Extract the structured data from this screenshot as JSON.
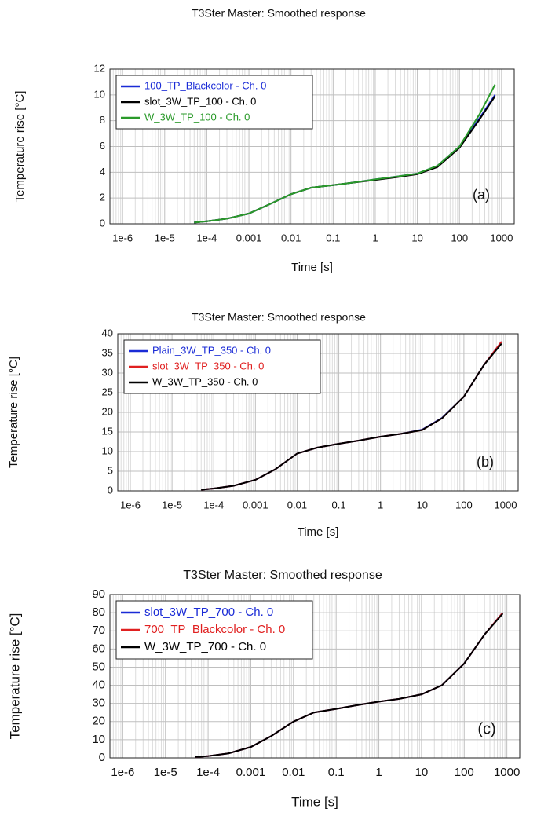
{
  "chart_data": [
    {
      "type": "line",
      "title": "T3Ster Master: Smoothed response",
      "xlabel": "Time [s]",
      "ylabel": "Temperature rise [°C]",
      "annotation": "(a)",
      "xscale": "log",
      "grid": true,
      "legend": "upper left",
      "xlim": [
        5e-07,
        2000
      ],
      "ylim": [
        0,
        12
      ],
      "xticks": [
        {
          "value": 1e-06,
          "label": "1e-6"
        },
        {
          "value": 1e-05,
          "label": "1e-5"
        },
        {
          "value": 0.0001,
          "label": "1e-4"
        },
        0.001,
        0.01,
        0.1,
        1,
        10,
        100,
        1000
      ],
      "yticks": [
        0,
        2,
        4,
        6,
        8,
        10,
        12
      ],
      "x": [
        5e-05,
        0.0001,
        0.0003,
        0.001,
        0.003,
        0.01,
        0.03,
        0.1,
        0.3,
        1,
        3,
        10,
        30,
        100,
        300,
        700
      ],
      "series": [
        {
          "name": "100_TP_Blackcolor - Ch. 0",
          "color": "#1a2bd6",
          "values": [
            0.1,
            0.2,
            0.4,
            0.8,
            1.5,
            2.3,
            2.8,
            3.0,
            3.2,
            3.45,
            3.65,
            3.9,
            4.5,
            6.0,
            8.2,
            10.0
          ]
        },
        {
          "name": "slot_3W_TP_100 - Ch. 0",
          "color": "#000000",
          "values": [
            0.1,
            0.2,
            0.4,
            0.8,
            1.5,
            2.3,
            2.8,
            3.0,
            3.2,
            3.4,
            3.6,
            3.85,
            4.4,
            5.9,
            8.1,
            9.9
          ]
        },
        {
          "name": "W_3W_TP_100 - Ch. 0",
          "color": "#2a9a2a",
          "values": [
            0.1,
            0.2,
            0.4,
            0.8,
            1.5,
            2.3,
            2.8,
            3.0,
            3.2,
            3.45,
            3.65,
            3.9,
            4.5,
            6.0,
            8.5,
            10.8
          ]
        }
      ]
    },
    {
      "type": "line",
      "title": "T3Ster Master: Smoothed response",
      "xlabel": "Time [s]",
      "ylabel": "Temperature rise [°C]",
      "annotation": "(b)",
      "xscale": "log",
      "grid": true,
      "legend": "upper left",
      "xlim": [
        5e-07,
        2000
      ],
      "ylim": [
        0,
        40
      ],
      "xticks": [
        {
          "value": 1e-06,
          "label": "1e-6"
        },
        {
          "value": 1e-05,
          "label": "1e-5"
        },
        {
          "value": 0.0001,
          "label": "1e-4"
        },
        0.001,
        0.01,
        0.1,
        1,
        10,
        100,
        1000
      ],
      "yticks": [
        0,
        5,
        10,
        15,
        20,
        25,
        30,
        35,
        40
      ],
      "x": [
        5e-05,
        0.0001,
        0.0003,
        0.001,
        0.003,
        0.01,
        0.03,
        0.1,
        0.3,
        1,
        3,
        10,
        30,
        100,
        300,
        800
      ],
      "series": [
        {
          "name": "Plain_3W_TP_350 - Ch. 0",
          "color": "#1a2bd6",
          "values": [
            0.3,
            0.6,
            1.3,
            2.8,
            5.5,
            9.5,
            11,
            12,
            12.8,
            13.8,
            14.5,
            15.6,
            18.6,
            24,
            32,
            38
          ]
        },
        {
          "name": "slot_3W_TP_350 - Ch. 0",
          "color": "#e02020",
          "values": [
            0.3,
            0.6,
            1.3,
            2.8,
            5.5,
            9.5,
            11,
            12,
            12.8,
            13.8,
            14.5,
            15.5,
            18.5,
            24,
            32,
            38
          ]
        },
        {
          "name": "W_3W_TP_350 - Ch. 0",
          "color": "#000000",
          "values": [
            0.3,
            0.6,
            1.3,
            2.8,
            5.5,
            9.5,
            11,
            12,
            12.8,
            13.8,
            14.5,
            15.5,
            18.5,
            24,
            32,
            37.5
          ]
        }
      ]
    },
    {
      "type": "line",
      "title": "T3Ster Master: Smoothed response",
      "xlabel": "Time [s]",
      "ylabel": "Temperature rise [°C]",
      "annotation": "(c)",
      "xscale": "log",
      "grid": true,
      "legend": "upper left",
      "xlim": [
        5e-07,
        2000
      ],
      "ylim": [
        0,
        90
      ],
      "xticks": [
        {
          "value": 1e-06,
          "label": "1e-6"
        },
        {
          "value": 1e-05,
          "label": "1e-5"
        },
        {
          "value": 0.0001,
          "label": "1e-4"
        },
        0.001,
        0.01,
        0.1,
        1,
        10,
        100,
        1000
      ],
      "yticks": [
        0,
        10,
        20,
        30,
        40,
        50,
        60,
        70,
        80,
        90
      ],
      "x": [
        5e-05,
        0.0001,
        0.0003,
        0.001,
        0.003,
        0.01,
        0.03,
        0.1,
        0.3,
        1,
        3,
        10,
        30,
        100,
        300,
        800
      ],
      "series": [
        {
          "name": "slot_3W_TP_700 - Ch. 0",
          "color": "#1a2bd6",
          "values": [
            0.5,
            1,
            2.5,
            6,
            12,
            20,
            25,
            27,
            29,
            31,
            32.5,
            35,
            40,
            52,
            68,
            80
          ]
        },
        {
          "name": "700_TP_Blackcolor - Ch. 0",
          "color": "#e02020",
          "values": [
            0.5,
            1,
            2.5,
            6,
            12,
            20,
            25,
            27,
            29,
            31,
            32.5,
            35,
            40,
            52,
            68,
            80
          ]
        },
        {
          "name": "W_3W_TP_700 - Ch. 0",
          "color": "#000000",
          "values": [
            0.5,
            1,
            2.5,
            6,
            12,
            20,
            25,
            27,
            29,
            31,
            32.5,
            35,
            40,
            52,
            68,
            79.5
          ]
        }
      ]
    }
  ]
}
